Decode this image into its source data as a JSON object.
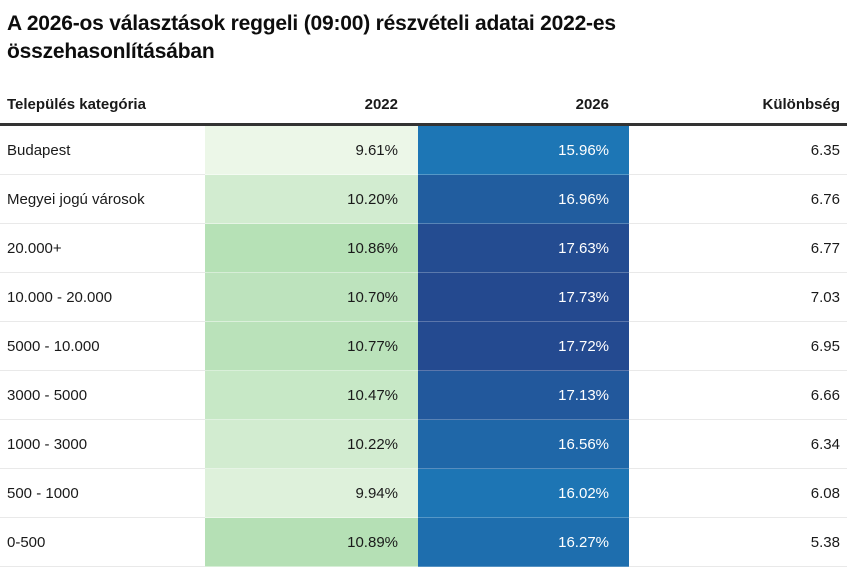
{
  "title": "A 2026-os választások reggeli (09:00) részvételi adatai 2022-es összehasonlításában",
  "table": {
    "columns": [
      {
        "label": "Település kategória"
      },
      {
        "label": "2022"
      },
      {
        "label": "2026"
      },
      {
        "label": "Különbség"
      }
    ],
    "rows": [
      {
        "category": "Budapest",
        "y2022": "9.61%",
        "y2026": "15.96%",
        "diff": "6.35",
        "color_2022": "#ecf7e8",
        "color_2026": "#1d76b5"
      },
      {
        "category": "Megyei jogú városok",
        "y2022": "10.20%",
        "y2026": "16.96%",
        "diff": "6.76",
        "color_2022": "#d2ecd0",
        "color_2026": "#215d9f"
      },
      {
        "category": "20.000+",
        "y2022": "10.86%",
        "y2026": "17.63%",
        "diff": "6.77",
        "color_2022": "#b6e1b6",
        "color_2026": "#244c91"
      },
      {
        "category": "10.000 - 20.000",
        "y2022": "10.70%",
        "y2026": "17.73%",
        "diff": "7.03",
        "color_2022": "#bde3bd",
        "color_2026": "#24498f"
      },
      {
        "category": "5000 - 10.000",
        "y2022": "10.77%",
        "y2026": "17.72%",
        "diff": "6.95",
        "color_2022": "#bae2ba",
        "color_2026": "#244a90"
      },
      {
        "category": "3000 - 5000",
        "y2022": "10.47%",
        "y2026": "17.13%",
        "diff": "6.66",
        "color_2022": "#c7e8c6",
        "color_2026": "#22589c"
      },
      {
        "category": "1000 - 3000",
        "y2022": "10.22%",
        "y2026": "16.56%",
        "diff": "6.34",
        "color_2022": "#d2ecd0",
        "color_2026": "#1f67a8"
      },
      {
        "category": "500 - 1000",
        "y2022": "9.94%",
        "y2026": "16.02%",
        "diff": "6.08",
        "color_2022": "#def1db",
        "color_2026": "#1d75b4"
      },
      {
        "category": "0-500",
        "y2022": "10.89%",
        "y2026": "16.27%",
        "diff": "5.38",
        "color_2022": "#b5e0b5",
        "color_2026": "#1e6eae"
      }
    ]
  },
  "colors": {
    "title_text": "#0d0d0d",
    "body_text": "#1a1a1a",
    "value_text_2026": "#ffffff",
    "header_border": "#333333",
    "row_border": "#e9e9e9",
    "green_scale_min": "#ecf7e8",
    "green_scale_max": "#b5e0b5",
    "blue_scale_min": "#1d76b5",
    "blue_scale_max": "#24498f",
    "bottom_bar": "#1d76b5"
  },
  "chart_data": {
    "type": "table",
    "title": "A 2026-os választások reggeli (09:00) részvételi adatai 2022-es összehasonlításában",
    "columns": [
      "Település kategória",
      "2022",
      "2026",
      "Különbség"
    ],
    "categories": [
      "Budapest",
      "Megyei jogú városok",
      "20.000+",
      "10.000 - 20.000",
      "5000 - 10.000",
      "3000 - 5000",
      "1000 - 3000",
      "500 - 1000",
      "0-500"
    ],
    "series": [
      {
        "name": "2022",
        "unit": "%",
        "values": [
          9.61,
          10.2,
          10.86,
          10.7,
          10.77,
          10.47,
          10.22,
          9.94,
          10.89
        ],
        "heatmap_scale": [
          "#ecf7e8",
          "#b5e0b5"
        ]
      },
      {
        "name": "2026",
        "unit": "%",
        "values": [
          15.96,
          16.96,
          17.63,
          17.73,
          17.72,
          17.13,
          16.56,
          16.02,
          16.27
        ],
        "heatmap_scale": [
          "#1d76b5",
          "#24498f"
        ]
      },
      {
        "name": "Különbség",
        "values": [
          6.35,
          6.76,
          6.77,
          7.03,
          6.95,
          6.66,
          6.34,
          6.08,
          5.38
        ]
      }
    ],
    "layout_hints": {
      "heatmap_columns": [
        "2022",
        "2026"
      ],
      "value_alignment": "right",
      "grid": "horizontal-light"
    }
  }
}
